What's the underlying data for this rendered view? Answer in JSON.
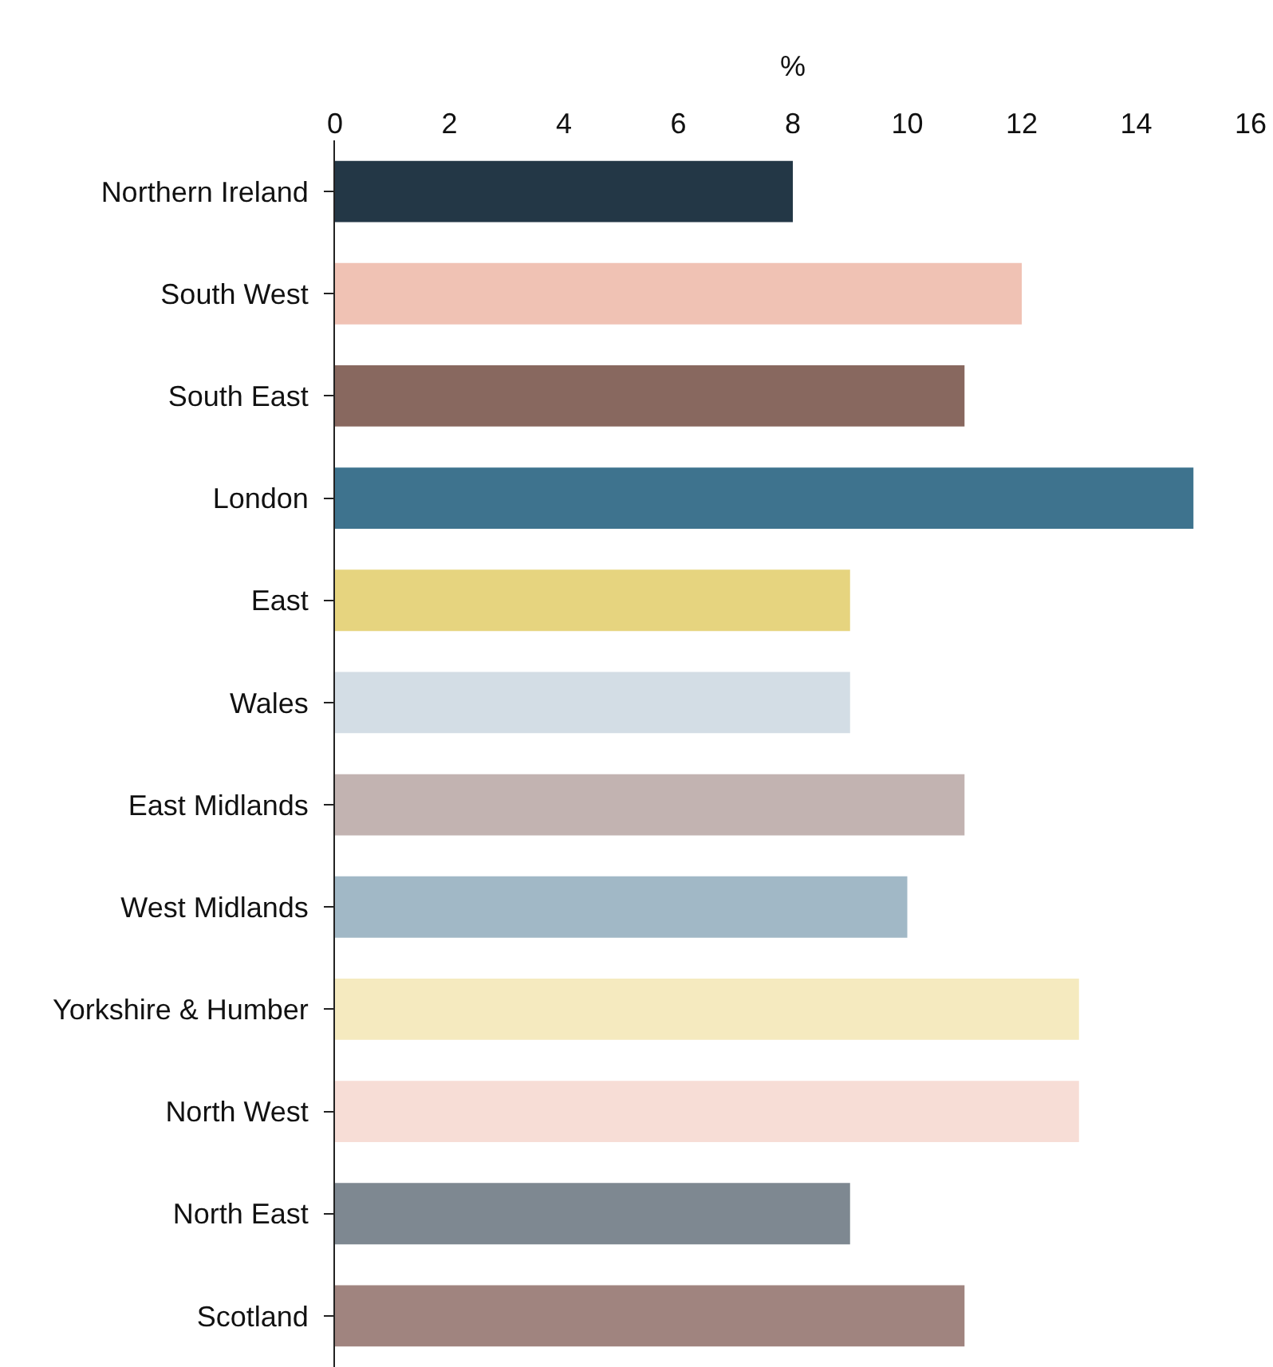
{
  "chart_data": {
    "type": "bar",
    "orientation": "horizontal",
    "xlabel": "%",
    "categories": [
      "Northern Ireland",
      "South West",
      "South East",
      "London",
      "East",
      "Wales",
      "East Midlands",
      "West Midlands",
      "Yorkshire & Humber",
      "North West",
      "North East",
      "Scotland"
    ],
    "values": [
      8,
      12,
      11,
      15,
      9,
      9,
      11,
      10,
      13,
      13,
      9,
      11
    ],
    "colors": [
      "#233746",
      "#f0c2b4",
      "#88685f",
      "#3e738e",
      "#e6d47f",
      "#d3dde5",
      "#c2b3b1",
      "#a1b8c6",
      "#f5eabf",
      "#f7ddd6",
      "#7e8891",
      "#a0847f"
    ],
    "xlim": [
      0,
      16
    ],
    "xticks": [
      0,
      2,
      4,
      6,
      8,
      10,
      12,
      14,
      16
    ],
    "grid": false
  }
}
